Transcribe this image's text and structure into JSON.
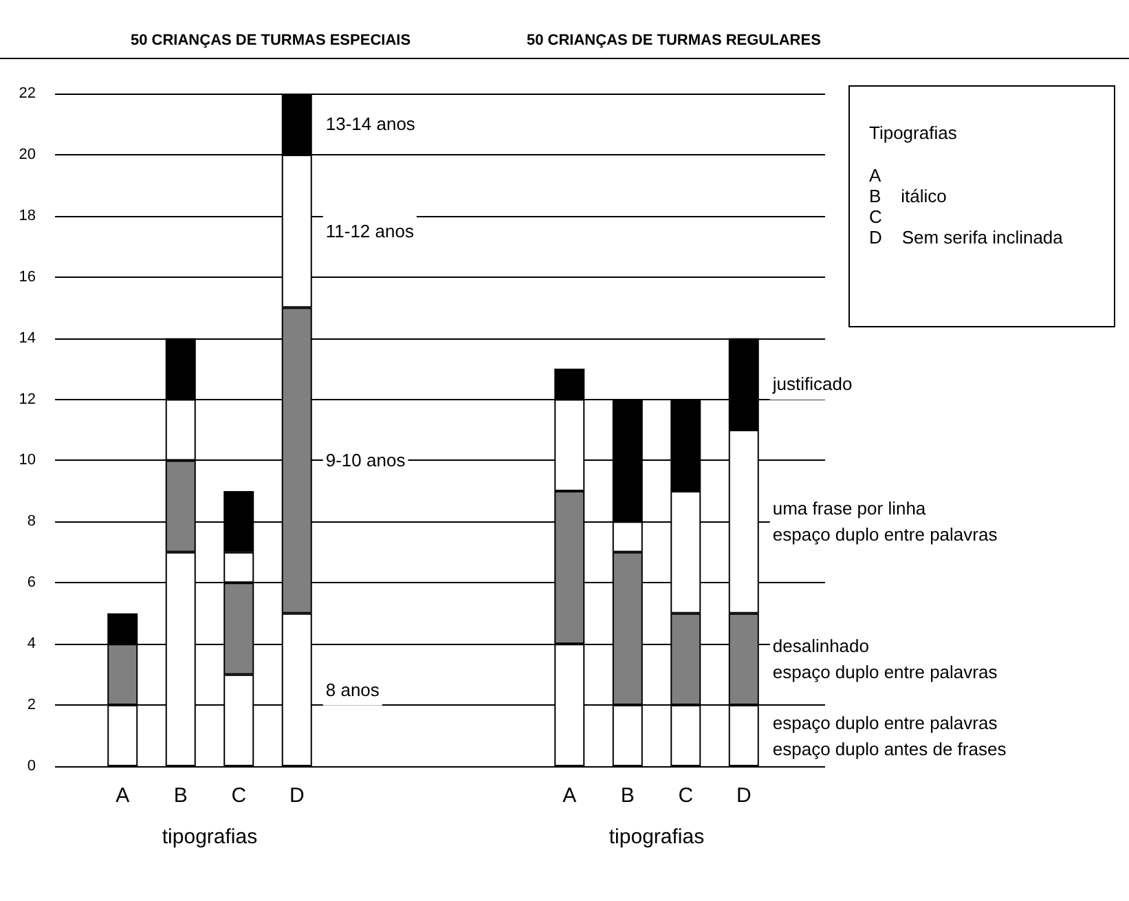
{
  "chart_data": [
    {
      "type": "bar",
      "title": "50 CRIANÇAS DE TURMAS ESPECIAIS",
      "categories": [
        "A",
        "B",
        "C",
        "D"
      ],
      "xlabel": "tipografias",
      "stacked": true,
      "grid": "y",
      "ylim": [
        0,
        22
      ],
      "yticks": [
        0,
        2,
        4,
        6,
        8,
        10,
        12,
        14,
        16,
        18,
        20,
        22
      ],
      "series": [
        {
          "name": "8 anos",
          "color": "#ffffff",
          "values": [
            2,
            7,
            3,
            5
          ]
        },
        {
          "name": "9-10 anos",
          "color": "#808080",
          "values": [
            2,
            3,
            3,
            10
          ]
        },
        {
          "name": "11-12 anos",
          "color": "#ffffff",
          "values": [
            0,
            2,
            1,
            5
          ]
        },
        {
          "name": "13-14 anos",
          "color": "#000000",
          "values": [
            1,
            2,
            2,
            2
          ]
        }
      ]
    },
    {
      "type": "bar",
      "title": "50 CRIANÇAS DE TURMAS REGULARES",
      "categories": [
        "A",
        "B",
        "C",
        "D"
      ],
      "xlabel": "tipografias",
      "stacked": true,
      "grid": "y",
      "tick_labels": "x",
      "ylim": [
        0,
        22
      ],
      "yticks": [
        0,
        2,
        4,
        6,
        8,
        10,
        12,
        14,
        16,
        18,
        20,
        22
      ],
      "series": [
        {
          "name": "espaço duplo entre palavras\nespaço duplo antes de frases",
          "color": "#ffffff",
          "values": [
            4,
            2,
            2,
            2
          ]
        },
        {
          "name": "desalinhado\nespaço duplo entre palavras",
          "color": "#808080",
          "values": [
            5,
            5,
            3,
            3
          ]
        },
        {
          "name": "uma frase por linha\nespaço duplo entre palavras",
          "color": "#ffffff",
          "values": [
            3,
            1,
            4,
            6
          ]
        },
        {
          "name": "justificado",
          "color": "#000000",
          "values": [
            1,
            4,
            3,
            3
          ]
        }
      ]
    },
    {
      "type": "other",
      "title": "Tipografias",
      "annotations": [
        "A",
        "B    itálico",
        "C",
        "D    Sem serifa inclinada"
      ]
    }
  ]
}
